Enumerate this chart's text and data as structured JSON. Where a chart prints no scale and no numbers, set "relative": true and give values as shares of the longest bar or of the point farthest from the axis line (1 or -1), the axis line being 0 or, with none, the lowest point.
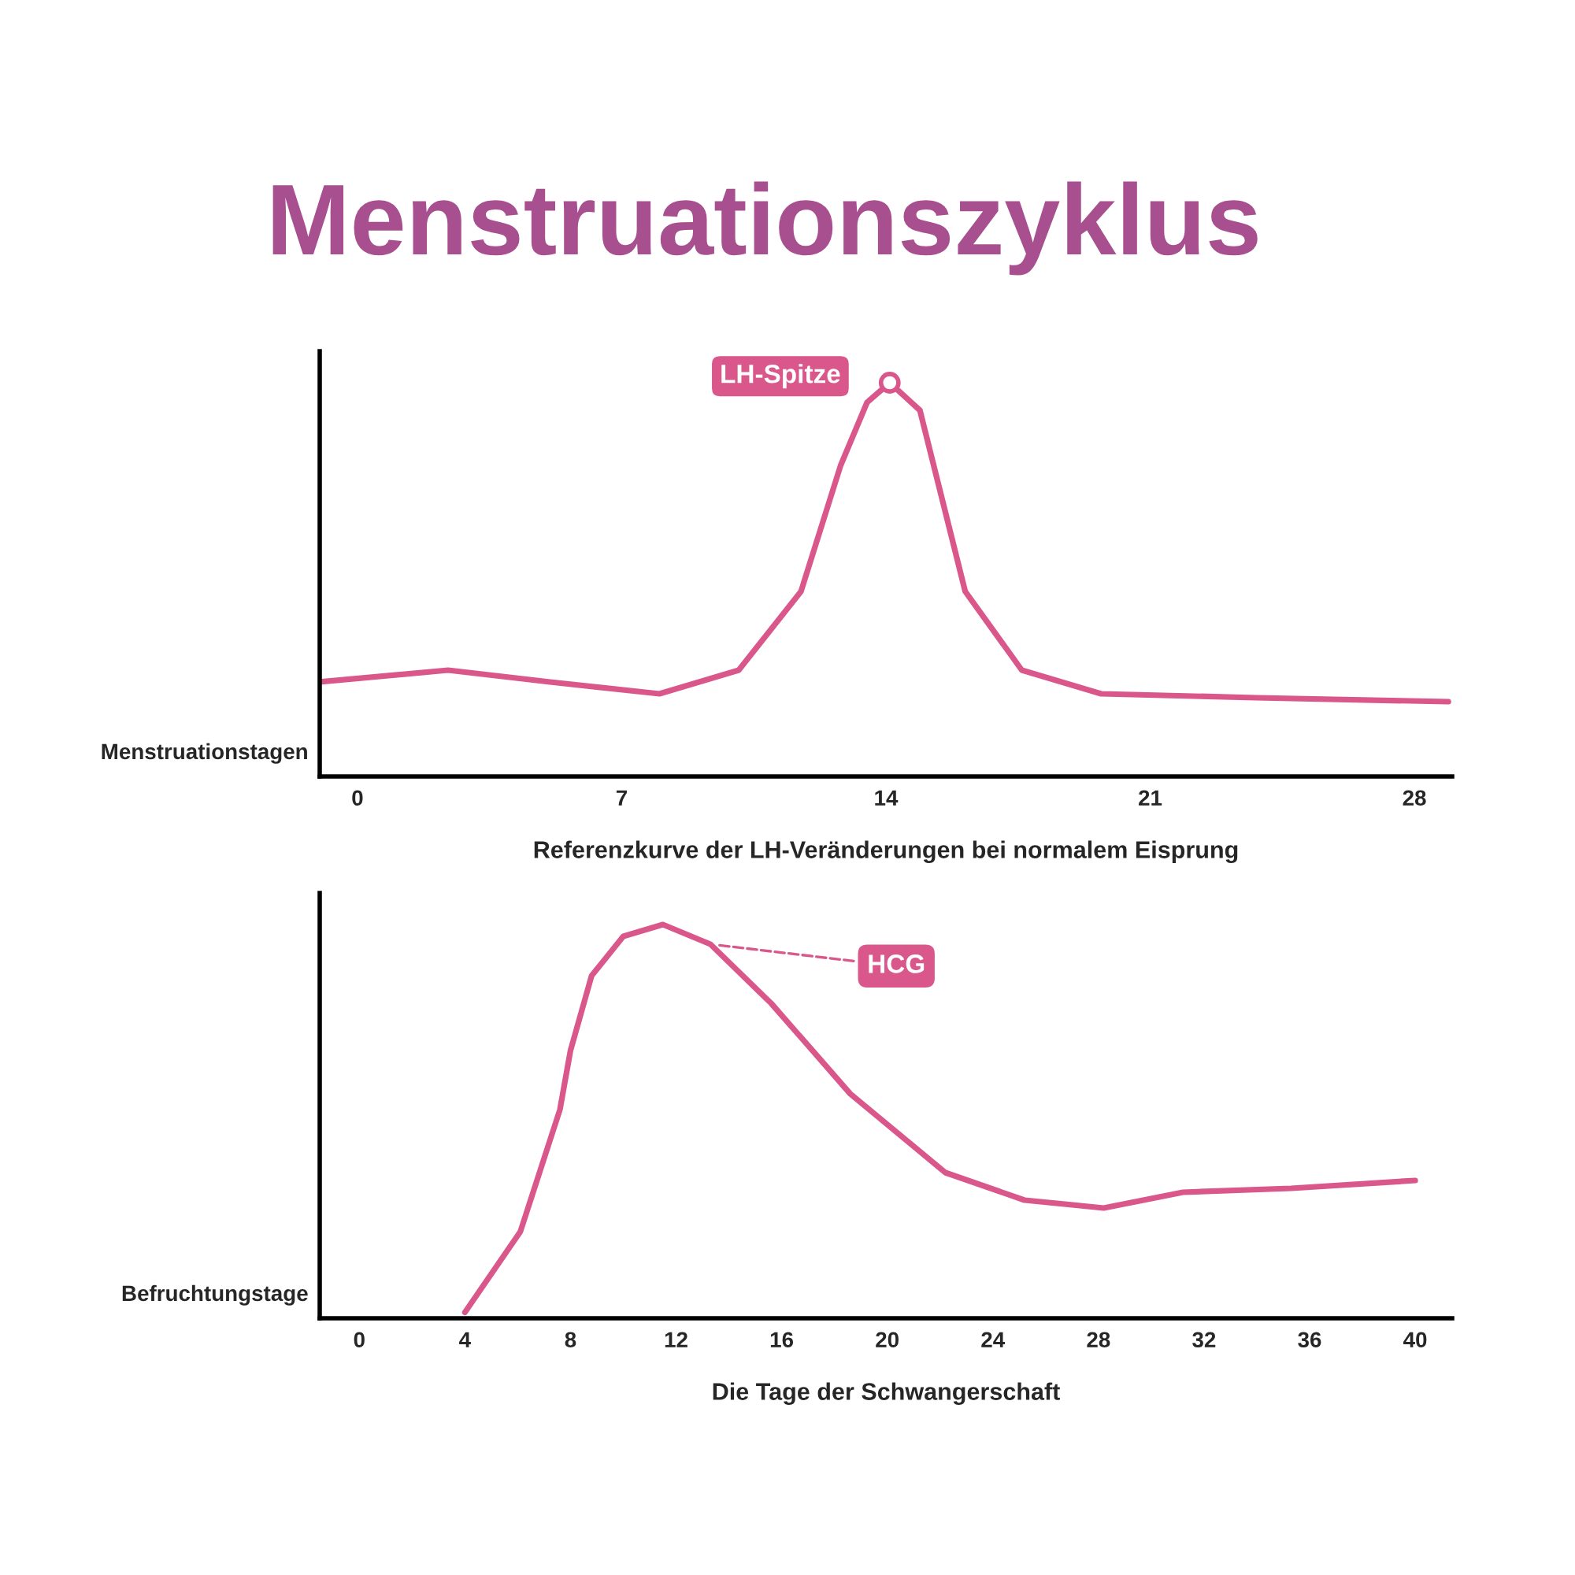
{
  "chart_data": [
    {
      "type": "line",
      "title": "Menstruationszyklus",
      "ylabel": "Menstruationstagen",
      "xlabel": "Referenzkurve der LH-Veränderungen bei normalem Eisprung",
      "relative": true,
      "xlim": [
        -1,
        29
      ],
      "xticks": [
        0,
        7,
        14,
        21,
        28
      ],
      "grid": false,
      "legend": false,
      "series": [
        {
          "color": "#d9578a",
          "x": [
            -1,
            2.4,
            5.1,
            8,
            10.1,
            11.75,
            12.8,
            13.5,
            14.1,
            14.9,
            15.5,
            16.1,
            17.6,
            19.7,
            23.8,
            28.9
          ],
          "values": [
            0.24,
            0.27,
            0.24,
            0.21,
            0.27,
            0.47,
            0.79,
            0.95,
            1.0,
            0.93,
            0.7,
            0.47,
            0.27,
            0.21,
            0.2,
            0.19
          ]
        }
      ],
      "annotations": [
        {
          "text": "LH-Spitze",
          "x": 14.1,
          "y": 1.0
        }
      ]
    },
    {
      "type": "line",
      "ylabel": "Befruchtungstage",
      "xlabel": "Die Tage der Schwangerschaft",
      "relative": true,
      "xlim": [
        -1.5,
        41.4
      ],
      "xticks": [
        0,
        4,
        8,
        12,
        16,
        20,
        24,
        28,
        32,
        36,
        40
      ],
      "grid": false,
      "legend": false,
      "series": [
        {
          "color": "#d9578a",
          "x": [
            4,
            6.1,
            7.6,
            8,
            8.8,
            10,
            11.5,
            13.3,
            15.6,
            18.6,
            22.2,
            25.2,
            28.2,
            31.2,
            35.3,
            40
          ],
          "values": [
            0.015,
            0.22,
            0.53,
            0.68,
            0.87,
            0.97,
            1.0,
            0.95,
            0.8,
            0.57,
            0.37,
            0.3,
            0.28,
            0.32,
            0.33,
            0.35
          ]
        }
      ],
      "annotations": [
        {
          "text": "HCG",
          "x": 13.3,
          "y": 0.95
        }
      ]
    }
  ]
}
